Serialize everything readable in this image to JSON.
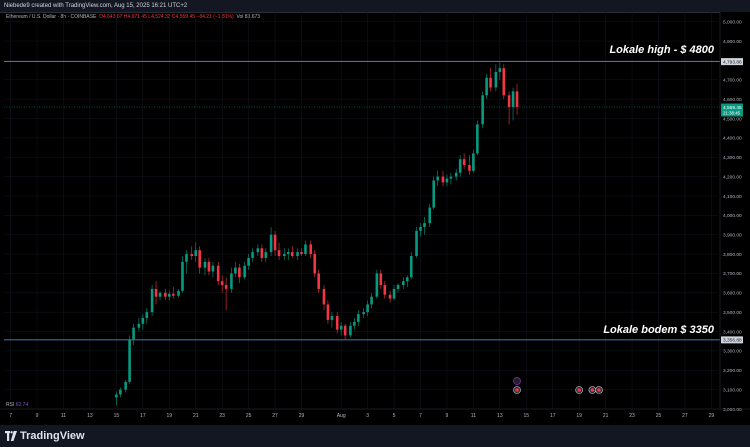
{
  "topbar": {
    "text": "Niebede9 created with TradingView.com, Aug 15, 2025 16:21 UTC+2"
  },
  "legend": {
    "symbol": "Ethereum / U.S. Dollar · 8h · COINBASE",
    "ohlc": "O4,643.67  H4,671.45  L4,524.32  C4,559.45  −84.21 (−1.81%)",
    "vol": "Vol 83.673"
  },
  "annotations": {
    "high_label": "Lokale high - $ 4800",
    "low_label": "Lokale bodem $ 3350"
  },
  "rsi": {
    "label": "RSI",
    "value": "62.74"
  },
  "brand": {
    "name": "TradingView"
  },
  "colors": {
    "up": "#089981",
    "down": "#f23645",
    "hline": "#5b9cf6",
    "price_badge": "#089981",
    "grid": "#131722"
  },
  "chart_data": {
    "type": "candlestick",
    "title": "Ethereum / U.S. Dollar · 8h · COINBASE",
    "y_axis": {
      "ylim": [
        3000,
        5050
      ],
      "ticks": [
        "5,000.00",
        "4,900.00",
        "4,800.00",
        "4,700.00",
        "4,600.00",
        "4,500.00",
        "4,400.00",
        "4,300.00",
        "4,200.00",
        "4,100.00",
        "4,000.00",
        "3,900.00",
        "3,800.00",
        "3,700.00",
        "3,600.00",
        "3,500.00",
        "3,400.00",
        "3,300.00",
        "3,200.00",
        "3,100.00",
        "3,000.00"
      ],
      "tick_values": [
        5000,
        4900,
        4800,
        4700,
        4600,
        4500,
        4400,
        4300,
        4200,
        4100,
        4000,
        3900,
        3800,
        3700,
        3600,
        3500,
        3400,
        3300,
        3200,
        3100,
        3000
      ]
    },
    "x_axis": {
      "ticks": [
        "7",
        "9",
        "11",
        "13",
        "15",
        "17",
        "19",
        "21",
        "23",
        "25",
        "27",
        "29",
        "Aug",
        "3",
        "5",
        "7",
        "9",
        "11",
        "13",
        "15",
        "17",
        "19",
        "21",
        "23",
        "25",
        "27",
        "29"
      ],
      "tick_days": [
        7,
        9,
        11,
        13,
        15,
        17,
        19,
        21,
        23,
        25,
        27,
        29,
        32,
        34,
        36,
        38,
        40,
        42,
        44,
        46,
        48,
        50,
        52,
        54,
        56,
        58,
        60
      ],
      "unit": "day (July 1 = 1, Aug 1 = 32)",
      "xlim": [
        6.5,
        60.5
      ]
    },
    "price_labels": {
      "high_line": "4,793.86",
      "low_line": "3,356.88",
      "current": "4,559.45",
      "countdown": "21:38:45"
    },
    "hlines": [
      4793.86,
      3356.88
    ],
    "current_price": 4559.45,
    "candles": [
      {
        "t": 15.0,
        "o": 3060,
        "h": 3090,
        "l": 3020,
        "c": 3075
      },
      {
        "t": 15.3,
        "o": 3075,
        "h": 3110,
        "l": 3060,
        "c": 3100
      },
      {
        "t": 15.7,
        "o": 3100,
        "h": 3150,
        "l": 3085,
        "c": 3140
      },
      {
        "t": 16.0,
        "o": 3140,
        "h": 3380,
        "l": 3130,
        "c": 3360
      },
      {
        "t": 16.3,
        "o": 3360,
        "h": 3440,
        "l": 3330,
        "c": 3420
      },
      {
        "t": 16.7,
        "o": 3420,
        "h": 3470,
        "l": 3400,
        "c": 3440
      },
      {
        "t": 17.0,
        "o": 3440,
        "h": 3490,
        "l": 3410,
        "c": 3470
      },
      {
        "t": 17.3,
        "o": 3470,
        "h": 3520,
        "l": 3440,
        "c": 3500
      },
      {
        "t": 17.7,
        "o": 3500,
        "h": 3640,
        "l": 3480,
        "c": 3620
      },
      {
        "t": 18.0,
        "o": 3620,
        "h": 3660,
        "l": 3540,
        "c": 3580
      },
      {
        "t": 18.3,
        "o": 3580,
        "h": 3610,
        "l": 3560,
        "c": 3600
      },
      {
        "t": 18.7,
        "o": 3600,
        "h": 3620,
        "l": 3565,
        "c": 3580
      },
      {
        "t": 19.0,
        "o": 3580,
        "h": 3610,
        "l": 3560,
        "c": 3595
      },
      {
        "t": 19.3,
        "o": 3595,
        "h": 3630,
        "l": 3570,
        "c": 3585
      },
      {
        "t": 19.7,
        "o": 3585,
        "h": 3620,
        "l": 3575,
        "c": 3610
      },
      {
        "t": 20.0,
        "o": 3610,
        "h": 3790,
        "l": 3600,
        "c": 3760
      },
      {
        "t": 20.3,
        "o": 3760,
        "h": 3820,
        "l": 3700,
        "c": 3800
      },
      {
        "t": 20.7,
        "o": 3800,
        "h": 3840,
        "l": 3770,
        "c": 3790
      },
      {
        "t": 21.0,
        "o": 3790,
        "h": 3860,
        "l": 3760,
        "c": 3820
      },
      {
        "t": 21.3,
        "o": 3820,
        "h": 3840,
        "l": 3700,
        "c": 3730
      },
      {
        "t": 21.7,
        "o": 3730,
        "h": 3780,
        "l": 3690,
        "c": 3760
      },
      {
        "t": 22.0,
        "o": 3760,
        "h": 3780,
        "l": 3690,
        "c": 3710
      },
      {
        "t": 22.3,
        "o": 3710,
        "h": 3760,
        "l": 3680,
        "c": 3740
      },
      {
        "t": 22.7,
        "o": 3740,
        "h": 3760,
        "l": 3640,
        "c": 3660
      },
      {
        "t": 23.0,
        "o": 3660,
        "h": 3690,
        "l": 3600,
        "c": 3640
      },
      {
        "t": 23.3,
        "o": 3640,
        "h": 3680,
        "l": 3510,
        "c": 3620
      },
      {
        "t": 23.7,
        "o": 3620,
        "h": 3730,
        "l": 3600,
        "c": 3700
      },
      {
        "t": 24.0,
        "o": 3700,
        "h": 3760,
        "l": 3680,
        "c": 3730
      },
      {
        "t": 24.3,
        "o": 3730,
        "h": 3750,
        "l": 3650,
        "c": 3680
      },
      {
        "t": 24.7,
        "o": 3680,
        "h": 3760,
        "l": 3670,
        "c": 3740
      },
      {
        "t": 25.0,
        "o": 3740,
        "h": 3800,
        "l": 3720,
        "c": 3780
      },
      {
        "t": 25.3,
        "o": 3780,
        "h": 3830,
        "l": 3760,
        "c": 3810
      },
      {
        "t": 25.7,
        "o": 3810,
        "h": 3850,
        "l": 3790,
        "c": 3830
      },
      {
        "t": 26.0,
        "o": 3830,
        "h": 3850,
        "l": 3760,
        "c": 3780
      },
      {
        "t": 26.3,
        "o": 3780,
        "h": 3830,
        "l": 3760,
        "c": 3810
      },
      {
        "t": 26.7,
        "o": 3810,
        "h": 3940,
        "l": 3790,
        "c": 3900
      },
      {
        "t": 27.0,
        "o": 3900,
        "h": 3920,
        "l": 3790,
        "c": 3820
      },
      {
        "t": 27.3,
        "o": 3820,
        "h": 3860,
        "l": 3770,
        "c": 3790
      },
      {
        "t": 27.7,
        "o": 3790,
        "h": 3830,
        "l": 3770,
        "c": 3800
      },
      {
        "t": 28.0,
        "o": 3800,
        "h": 3830,
        "l": 3770,
        "c": 3810
      },
      {
        "t": 28.3,
        "o": 3810,
        "h": 3840,
        "l": 3780,
        "c": 3790
      },
      {
        "t": 28.7,
        "o": 3790,
        "h": 3830,
        "l": 3770,
        "c": 3810
      },
      {
        "t": 29.0,
        "o": 3810,
        "h": 3830,
        "l": 3790,
        "c": 3800
      },
      {
        "t": 29.3,
        "o": 3800,
        "h": 3870,
        "l": 3790,
        "c": 3850
      },
      {
        "t": 29.7,
        "o": 3850,
        "h": 3870,
        "l": 3780,
        "c": 3800
      },
      {
        "t": 30.0,
        "o": 3800,
        "h": 3820,
        "l": 3680,
        "c": 3700
      },
      {
        "t": 30.3,
        "o": 3700,
        "h": 3720,
        "l": 3600,
        "c": 3620
      },
      {
        "t": 30.7,
        "o": 3620,
        "h": 3640,
        "l": 3510,
        "c": 3540
      },
      {
        "t": 31.0,
        "o": 3540,
        "h": 3560,
        "l": 3440,
        "c": 3460
      },
      {
        "t": 31.3,
        "o": 3460,
        "h": 3500,
        "l": 3420,
        "c": 3480
      },
      {
        "t": 31.7,
        "o": 3480,
        "h": 3500,
        "l": 3390,
        "c": 3410
      },
      {
        "t": 32.0,
        "o": 3410,
        "h": 3450,
        "l": 3380,
        "c": 3430
      },
      {
        "t": 32.3,
        "o": 3430,
        "h": 3440,
        "l": 3360,
        "c": 3380
      },
      {
        "t": 32.7,
        "o": 3380,
        "h": 3450,
        "l": 3370,
        "c": 3430
      },
      {
        "t": 33.0,
        "o": 3430,
        "h": 3470,
        "l": 3410,
        "c": 3450
      },
      {
        "t": 33.3,
        "o": 3450,
        "h": 3510,
        "l": 3430,
        "c": 3490
      },
      {
        "t": 33.7,
        "o": 3490,
        "h": 3520,
        "l": 3470,
        "c": 3500
      },
      {
        "t": 34.0,
        "o": 3500,
        "h": 3560,
        "l": 3480,
        "c": 3540
      },
      {
        "t": 34.3,
        "o": 3540,
        "h": 3600,
        "l": 3520,
        "c": 3580
      },
      {
        "t": 34.7,
        "o": 3580,
        "h": 3720,
        "l": 3570,
        "c": 3700
      },
      {
        "t": 35.0,
        "o": 3700,
        "h": 3720,
        "l": 3620,
        "c": 3640
      },
      {
        "t": 35.3,
        "o": 3640,
        "h": 3660,
        "l": 3570,
        "c": 3590
      },
      {
        "t": 35.7,
        "o": 3590,
        "h": 3610,
        "l": 3550,
        "c": 3570
      },
      {
        "t": 36.0,
        "o": 3570,
        "h": 3640,
        "l": 3560,
        "c": 3620
      },
      {
        "t": 36.3,
        "o": 3620,
        "h": 3650,
        "l": 3600,
        "c": 3640
      },
      {
        "t": 36.7,
        "o": 3640,
        "h": 3680,
        "l": 3620,
        "c": 3660
      },
      {
        "t": 37.0,
        "o": 3660,
        "h": 3690,
        "l": 3630,
        "c": 3680
      },
      {
        "t": 37.3,
        "o": 3680,
        "h": 3810,
        "l": 3670,
        "c": 3790
      },
      {
        "t": 37.7,
        "o": 3790,
        "h": 3940,
        "l": 3780,
        "c": 3920
      },
      {
        "t": 38.0,
        "o": 3920,
        "h": 3960,
        "l": 3890,
        "c": 3940
      },
      {
        "t": 38.3,
        "o": 3940,
        "h": 3990,
        "l": 3900,
        "c": 3960
      },
      {
        "t": 38.7,
        "o": 3960,
        "h": 4060,
        "l": 3940,
        "c": 4040
      },
      {
        "t": 39.0,
        "o": 4040,
        "h": 4200,
        "l": 4030,
        "c": 4180
      },
      {
        "t": 39.3,
        "o": 4180,
        "h": 4230,
        "l": 4150,
        "c": 4200
      },
      {
        "t": 39.7,
        "o": 4200,
        "h": 4230,
        "l": 4150,
        "c": 4170
      },
      {
        "t": 40.0,
        "o": 4170,
        "h": 4210,
        "l": 4150,
        "c": 4190
      },
      {
        "t": 40.3,
        "o": 4190,
        "h": 4220,
        "l": 4160,
        "c": 4200
      },
      {
        "t": 40.7,
        "o": 4200,
        "h": 4240,
        "l": 4180,
        "c": 4220
      },
      {
        "t": 41.0,
        "o": 4220,
        "h": 4310,
        "l": 4200,
        "c": 4290
      },
      {
        "t": 41.3,
        "o": 4290,
        "h": 4320,
        "l": 4240,
        "c": 4260
      },
      {
        "t": 41.7,
        "o": 4260,
        "h": 4310,
        "l": 4210,
        "c": 4230
      },
      {
        "t": 42.0,
        "o": 4230,
        "h": 4340,
        "l": 4220,
        "c": 4320
      },
      {
        "t": 42.3,
        "o": 4320,
        "h": 4490,
        "l": 4310,
        "c": 4470
      },
      {
        "t": 42.7,
        "o": 4470,
        "h": 4640,
        "l": 4450,
        "c": 4620
      },
      {
        "t": 43.0,
        "o": 4620,
        "h": 4730,
        "l": 4600,
        "c": 4710
      },
      {
        "t": 43.3,
        "o": 4710,
        "h": 4760,
        "l": 4640,
        "c": 4660
      },
      {
        "t": 43.7,
        "o": 4660,
        "h": 4780,
        "l": 4640,
        "c": 4740
      },
      {
        "t": 44.0,
        "o": 4740,
        "h": 4790,
        "l": 4700,
        "c": 4760
      },
      {
        "t": 44.3,
        "o": 4760,
        "h": 4780,
        "l": 4600,
        "c": 4620
      },
      {
        "t": 44.7,
        "o": 4620,
        "h": 4640,
        "l": 4470,
        "c": 4560
      },
      {
        "t": 45.0,
        "o": 4560,
        "h": 4660,
        "l": 4490,
        "c": 4640
      },
      {
        "t": 45.3,
        "o": 4640,
        "h": 4680,
        "l": 4520,
        "c": 4559
      }
    ],
    "events": [
      45.3,
      50.0,
      51.0,
      51.5
    ],
    "indicator": {
      "name": "RSI",
      "value": 62.74
    }
  }
}
